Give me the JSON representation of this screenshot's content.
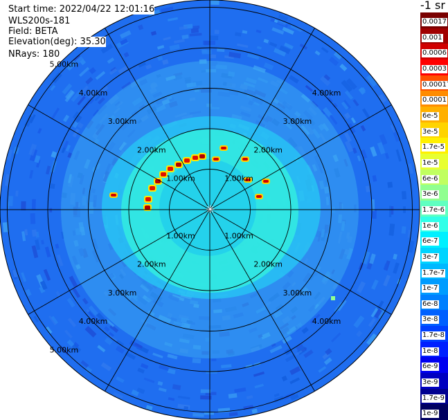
{
  "header": {
    "start_time": "Start time: 2022/04/22 12:01:16",
    "instrument": "WLS200s-181",
    "field": "Field: BETA",
    "elevation": "Elevation(deg): 35.30",
    "nrays": "NRays: 180"
  },
  "colorbar": {
    "title": "-1 sr",
    "ticks": [
      "0.0017",
      "0.001",
      "0.0006",
      "0.0003",
      "0.00017",
      "0.0001",
      "6e-5",
      "3e-5",
      "1.7e-5",
      "1e-5",
      "6e-6",
      "3e-6",
      "1.7e-6",
      "1e-6",
      "6e-7",
      "3e-7",
      "1.7e-7",
      "1e-7",
      "6e-8",
      "3e-8",
      "1.7e-8",
      "1e-8",
      "6e-9",
      "3e-9",
      "1.7e-9",
      "1e-9"
    ],
    "colors": [
      "#7a0000",
      "#a00000",
      "#d00000",
      "#ff0000",
      "#ff5000",
      "#ff8c00",
      "#ffb000",
      "#ffd400",
      "#fff000",
      "#e8ff30",
      "#c0ff60",
      "#90ff90",
      "#60ffc0",
      "#30ffe8",
      "#00f0ff",
      "#00d4ff",
      "#00b8ff",
      "#009cff",
      "#0080ff",
      "#0060ff",
      "#0040ff",
      "#0020ff",
      "#0000f0",
      "#0000c0",
      "#000090",
      "#000060"
    ]
  },
  "chart_data": {
    "type": "heatmap",
    "projection": "polar PPI",
    "range_rings_km": [
      1,
      2,
      3,
      4,
      5
    ],
    "ring_labels": [
      "1.00km",
      "2.00km",
      "3.00km",
      "4.00km",
      "5.00km"
    ],
    "radial_lines": 12,
    "max_range_km": 5.9,
    "background_beta": "1e-8",
    "near_field_beta": "1e-7"
  }
}
